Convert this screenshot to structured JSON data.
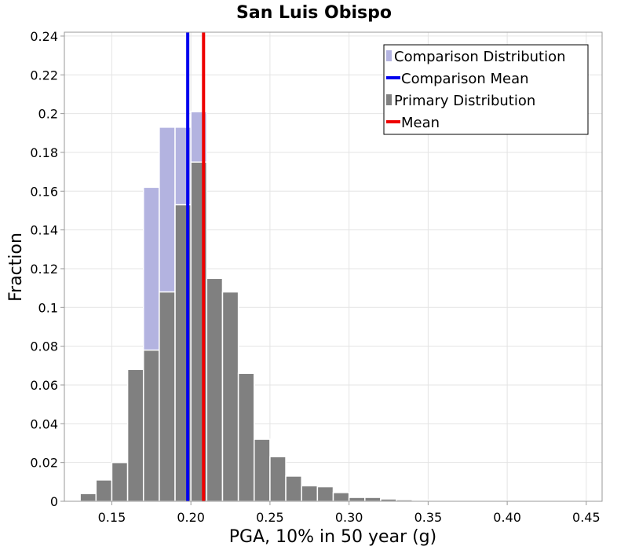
{
  "chart_data": {
    "type": "bar",
    "title": "San Luis Obispo",
    "xlabel": "PGA, 10% in 50 year (g)",
    "ylabel": "Fraction",
    "xlim": [
      0.12,
      0.46
    ],
    "ylim": [
      0,
      0.242
    ],
    "bin_width": 0.01,
    "x_ticks": [
      0.15,
      0.2,
      0.25,
      0.3,
      0.35,
      0.4,
      0.45
    ],
    "x_tick_labels": [
      "0.15",
      "0.20",
      "0.25",
      "0.30",
      "0.35",
      "0.40",
      "0.45"
    ],
    "y_ticks": [
      0,
      0.02,
      0.04,
      0.06,
      0.08,
      0.1,
      0.12,
      0.14,
      0.16,
      0.18,
      0.2,
      0.22,
      0.24
    ],
    "y_tick_labels": [
      "0",
      "0.02",
      "0.04",
      "0.06",
      "0.08",
      "0.1",
      "0.12",
      "0.14",
      "0.16",
      "0.18",
      "0.2",
      "0.22",
      "0.24"
    ],
    "series": [
      {
        "name": "Comparison Distribution",
        "color": "#b3b3e0",
        "x": [
          0.175,
          0.185,
          0.195,
          0.205
        ],
        "values": [
          0.162,
          0.193,
          0.193,
          0.201
        ]
      },
      {
        "name": "Primary Distribution",
        "color": "#808080",
        "x": [
          0.125,
          0.135,
          0.145,
          0.155,
          0.165,
          0.175,
          0.185,
          0.195,
          0.205,
          0.215,
          0.225,
          0.235,
          0.245,
          0.255,
          0.265,
          0.275,
          0.285,
          0.295,
          0.305,
          0.315,
          0.325,
          0.335,
          0.345,
          0.355,
          0.365,
          0.375,
          0.385,
          0.395,
          0.405,
          0.415,
          0.425,
          0.435,
          0.445,
          0.455
        ],
        "values": [
          0.0003,
          0.004,
          0.011,
          0.02,
          0.068,
          0.078,
          0.108,
          0.153,
          0.175,
          0.115,
          0.108,
          0.066,
          0.032,
          0.023,
          0.013,
          0.008,
          0.0075,
          0.0045,
          0.002,
          0.002,
          0.0012,
          0.0008,
          0.0006,
          0.0005,
          0.0004,
          0.0003,
          0.0003,
          0.0002,
          0.0002,
          0.0002,
          0.0002,
          0.0001,
          0.0001,
          0.0001
        ]
      }
    ],
    "lines": [
      {
        "name": "Comparison Mean",
        "x": 0.198,
        "color": "#0000ee"
      },
      {
        "name": "Mean",
        "x": 0.208,
        "color": "#ee0000"
      }
    ],
    "legend": {
      "position": "top-right",
      "entries": [
        {
          "label": "Comparison Distribution",
          "kind": "box",
          "color": "#b3b3e0"
        },
        {
          "label": "Comparison Mean",
          "kind": "line",
          "color": "#0000ee"
        },
        {
          "label": "Primary Distribution",
          "kind": "box",
          "color": "#808080"
        },
        {
          "label": "Mean",
          "kind": "line",
          "color": "#ee0000"
        }
      ]
    },
    "grid": true
  }
}
